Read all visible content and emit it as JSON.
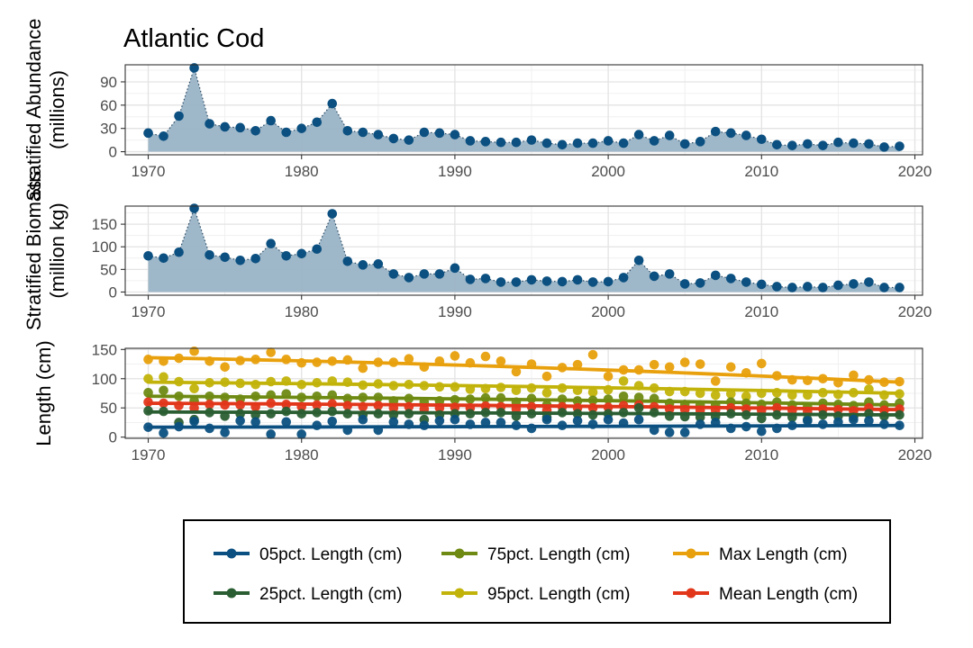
{
  "chart_data": {
    "title": "Atlantic Cod",
    "x_ticks": [
      "1970",
      "1980",
      "1990",
      "2000",
      "2010",
      "2020"
    ],
    "x_range": [
      1968.5,
      2020.5
    ],
    "panels": [
      {
        "type": "area",
        "ylabel_line1": "Stratified Abundance",
        "ylabel_line2": "(millions)",
        "y_ticks": [
          "0",
          "30",
          "60",
          "90"
        ],
        "y_range": [
          -4,
          112
        ],
        "series": [
          {
            "color": "#0b5080",
            "fill": "#99b3c6",
            "x": [
              1970,
              1971,
              1972,
              1973,
              1974,
              1975,
              1976,
              1977,
              1978,
              1979,
              1980,
              1981,
              1982,
              1983,
              1984,
              1985,
              1986,
              1987,
              1988,
              1989,
              1990,
              1991,
              1992,
              1993,
              1994,
              1995,
              1996,
              1997,
              1998,
              1999,
              2000,
              2001,
              2002,
              2003,
              2004,
              2005,
              2006,
              2007,
              2008,
              2009,
              2010,
              2011,
              2012,
              2013,
              2014,
              2015,
              2016,
              2017,
              2018,
              2019
            ],
            "values": [
              24,
              20,
              46,
              108,
              36,
              32,
              31,
              27,
              40,
              25,
              30,
              38,
              62,
              27,
              25,
              22,
              17,
              15,
              25,
              24,
              22,
              14,
              13,
              12,
              12,
              15,
              11,
              9,
              11,
              11,
              14,
              11,
              22,
              14,
              21,
              10,
              13,
              26,
              24,
              21,
              16,
              9,
              8,
              10,
              8,
              12,
              11,
              10,
              6,
              7
            ]
          }
        ]
      },
      {
        "type": "area",
        "ylabel_line1": "Stratified Biomass",
        "ylabel_line2": "(million kg)",
        "y_ticks": [
          "0",
          "50",
          "100",
          "150"
        ],
        "y_range": [
          -7,
          190
        ],
        "series": [
          {
            "color": "#0b5080",
            "fill": "#99b3c6",
            "x": [
              1970,
              1971,
              1972,
              1973,
              1974,
              1975,
              1976,
              1977,
              1978,
              1979,
              1980,
              1981,
              1982,
              1983,
              1984,
              1985,
              1986,
              1987,
              1988,
              1989,
              1990,
              1991,
              1992,
              1993,
              1994,
              1995,
              1996,
              1997,
              1998,
              1999,
              2000,
              2001,
              2002,
              2003,
              2004,
              2005,
              2006,
              2007,
              2008,
              2009,
              2010,
              2011,
              2012,
              2013,
              2014,
              2015,
              2016,
              2017,
              2018,
              2019
            ],
            "values": [
              80,
              75,
              88,
              185,
              82,
              77,
              70,
              74,
              107,
              80,
              85,
              95,
              173,
              68,
              60,
              62,
              40,
              32,
              40,
              40,
              53,
              28,
              30,
              22,
              22,
              27,
              24,
              23,
              27,
              22,
              23,
              32,
              70,
              35,
              40,
              18,
              20,
              37,
              30,
              22,
              17,
              12,
              10,
              12,
              10,
              15,
              18,
              22,
              10,
              10
            ]
          }
        ]
      },
      {
        "type": "scatter",
        "ylabel_line1": "Length (cm)",
        "y_ticks": [
          "0",
          "50",
          "100",
          "150"
        ],
        "y_range": [
          -2,
          152
        ],
        "series": [
          {
            "name": "Max Length (cm)",
            "color": "#e8a00c",
            "trend": [
              136,
              94
            ],
            "x": [
              1970,
              1971,
              1972,
              1973,
              1974,
              1975,
              1976,
              1977,
              1978,
              1979,
              1980,
              1981,
              1982,
              1983,
              1984,
              1985,
              1986,
              1987,
              1988,
              1989,
              1990,
              1991,
              1992,
              1993,
              1994,
              1995,
              1996,
              1997,
              1998,
              1999,
              2000,
              2001,
              2002,
              2003,
              2004,
              2005,
              2006,
              2007,
              2008,
              2009,
              2010,
              2011,
              2012,
              2013,
              2014,
              2015,
              2016,
              2017,
              2018,
              2019
            ],
            "values": [
              133,
              130,
              135,
              147,
              130,
              120,
              131,
              133,
              145,
              133,
              127,
              128,
              130,
              132,
              118,
              128,
              128,
              134,
              120,
              130,
              139,
              127,
              138,
              130,
              112,
              125,
              104,
              119,
              124,
              141,
              104,
              115,
              115,
              124,
              120,
              128,
              125,
              96,
              120,
              110,
              126,
              105,
              98,
              97,
              100,
              93,
              106,
              98,
              94,
              95
            ]
          },
          {
            "name": "95pct. Length (cm)",
            "color": "#c2b30a",
            "trend": [
              94,
              75
            ],
            "x": [
              1970,
              1971,
              1972,
              1973,
              1974,
              1975,
              1976,
              1977,
              1978,
              1979,
              1980,
              1981,
              1982,
              1983,
              1984,
              1985,
              1986,
              1987,
              1988,
              1989,
              1990,
              1991,
              1992,
              1993,
              1994,
              1995,
              1996,
              1997,
              1998,
              1999,
              2000,
              2001,
              2002,
              2003,
              2004,
              2005,
              2006,
              2007,
              2008,
              2009,
              2010,
              2011,
              2012,
              2013,
              2014,
              2015,
              2016,
              2017,
              2018,
              2019
            ],
            "values": [
              100,
              103,
              95,
              83,
              93,
              94,
              92,
              90,
              95,
              96,
              90,
              93,
              96,
              94,
              89,
              91,
              88,
              90,
              88,
              86,
              86,
              82,
              83,
              85,
              80,
              84,
              76,
              84,
              80,
              77,
              81,
              96,
              88,
              84,
              78,
              78,
              75,
              72,
              74,
              70,
              75,
              76,
              72,
              72,
              76,
              73,
              76,
              82,
              72,
              74
            ]
          },
          {
            "name": "75pct. Length (cm)",
            "color": "#6e8a12",
            "trend": [
              70,
              55
            ],
            "x": [
              1970,
              1971,
              1972,
              1973,
              1974,
              1975,
              1976,
              1977,
              1978,
              1979,
              1980,
              1981,
              1982,
              1983,
              1984,
              1985,
              1986,
              1987,
              1988,
              1989,
              1990,
              1991,
              1992,
              1993,
              1994,
              1995,
              1996,
              1997,
              1998,
              1999,
              2000,
              2001,
              2002,
              2003,
              2004,
              2005,
              2006,
              2007,
              2008,
              2009,
              2010,
              2011,
              2012,
              2013,
              2014,
              2015,
              2016,
              2017,
              2018,
              2019
            ],
            "values": [
              76,
              80,
              70,
              62,
              70,
              68,
              65,
              70,
              72,
              74,
              68,
              70,
              72,
              66,
              68,
              68,
              62,
              66,
              60,
              62,
              64,
              65,
              67,
              67,
              60,
              66,
              55,
              65,
              62,
              63,
              65,
              70,
              68,
              66,
              58,
              56,
              55,
              55,
              60,
              58,
              56,
              60,
              55,
              52,
              58,
              56,
              54,
              60,
              55,
              58
            ]
          },
          {
            "name": "Mean Length (cm)",
            "color": "#e2361a",
            "trend": [
              58,
              47
            ],
            "x": [
              1970,
              1971,
              1972,
              1973,
              1974,
              1975,
              1976,
              1977,
              1978,
              1979,
              1980,
              1981,
              1982,
              1983,
              1984,
              1985,
              1986,
              1987,
              1988,
              1989,
              1990,
              1991,
              1992,
              1993,
              1994,
              1995,
              1996,
              1997,
              1998,
              1999,
              2000,
              2001,
              2002,
              2003,
              2004,
              2005,
              2006,
              2007,
              2008,
              2009,
              2010,
              2011,
              2012,
              2013,
              2014,
              2015,
              2016,
              2017,
              2018,
              2019
            ],
            "values": [
              60,
              58,
              54,
              50,
              56,
              55,
              55,
              52,
              58,
              56,
              52,
              55,
              57,
              54,
              52,
              54,
              50,
              52,
              48,
              50,
              51,
              50,
              53,
              52,
              48,
              52,
              46,
              52,
              50,
              50,
              51,
              54,
              55,
              52,
              48,
              47,
              46,
              46,
              50,
              48,
              46,
              50,
              46,
              44,
              48,
              47,
              45,
              50,
              46,
              48
            ]
          },
          {
            "name": "25pct. Length (cm)",
            "color": "#2a5e32",
            "trend": [
              43,
              38
            ],
            "x": [
              1970,
              1971,
              1972,
              1973,
              1974,
              1975,
              1976,
              1977,
              1978,
              1979,
              1980,
              1981,
              1982,
              1983,
              1984,
              1985,
              1986,
              1987,
              1988,
              1989,
              1990,
              1991,
              1992,
              1993,
              1994,
              1995,
              1996,
              1997,
              1998,
              1999,
              2000,
              2001,
              2002,
              2003,
              2004,
              2005,
              2006,
              2007,
              2008,
              2009,
              2010,
              2011,
              2012,
              2013,
              2014,
              2015,
              2016,
              2017,
              2018,
              2019
            ],
            "values": [
              45,
              44,
              25,
              30,
              42,
              36,
              40,
              38,
              40,
              44,
              40,
              42,
              44,
              40,
              38,
              40,
              38,
              40,
              30,
              38,
              40,
              40,
              42,
              42,
              36,
              40,
              34,
              42,
              40,
              38,
              40,
              42,
              50,
              42,
              36,
              35,
              34,
              35,
              40,
              38,
              32,
              38,
              34,
              30,
              38,
              36,
              34,
              40,
              36,
              38
            ]
          },
          {
            "name": "05pct. Length (cm)",
            "color": "#0b5080",
            "trend": [
              17,
              20
            ],
            "x": [
              1970,
              1971,
              1972,
              1973,
              1974,
              1975,
              1976,
              1977,
              1978,
              1979,
              1980,
              1981,
              1982,
              1983,
              1984,
              1985,
              1986,
              1987,
              1988,
              1989,
              1990,
              1991,
              1992,
              1993,
              1994,
              1995,
              1996,
              1997,
              1998,
              1999,
              2000,
              2001,
              2002,
              2003,
              2004,
              2005,
              2006,
              2007,
              2008,
              2009,
              2010,
              2011,
              2012,
              2013,
              2014,
              2015,
              2016,
              2017,
              2018,
              2019
            ],
            "values": [
              17,
              7,
              18,
              27,
              15,
              8,
              28,
              26,
              5,
              26,
              5,
              20,
              27,
              12,
              30,
              12,
              26,
              22,
              20,
              28,
              30,
              22,
              25,
              25,
              20,
              15,
              30,
              20,
              28,
              22,
              30,
              24,
              30,
              12,
              8,
              8,
              22,
              25,
              15,
              18,
              10,
              15,
              20,
              28,
              22,
              26,
              30,
              28,
              22,
              20
            ]
          }
        ]
      }
    ],
    "legend": {
      "placement": "bottom",
      "entries": [
        {
          "label": "05pct. Length (cm)",
          "color": "#0b5080"
        },
        {
          "label": "75pct. Length (cm)",
          "color": "#6e8a12"
        },
        {
          "label": "Max Length (cm)",
          "color": "#e8a00c"
        },
        {
          "label": "25pct. Length (cm)",
          "color": "#2a5e32"
        },
        {
          "label": "95pct. Length (cm)",
          "color": "#c2b30a"
        },
        {
          "label": "Mean Length (cm)",
          "color": "#e2361a"
        }
      ]
    },
    "grid": true
  }
}
